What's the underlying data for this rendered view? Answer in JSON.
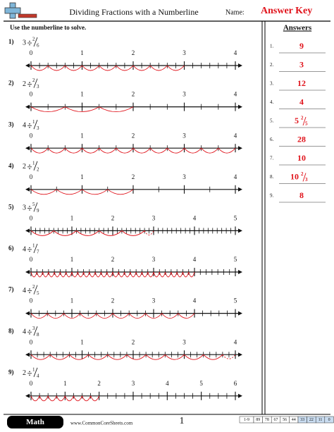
{
  "header": {
    "title": "Dividing Fractions with a Numberline",
    "name_label": "Name:",
    "answer_key": "Answer Key",
    "instructions": "Use the numberline to solve."
  },
  "problems": [
    {
      "label": "1)",
      "dividend": 3,
      "numerator": 2,
      "denominator": 6,
      "axis": [
        0,
        1,
        2,
        3,
        4
      ]
    },
    {
      "label": "2)",
      "dividend": 2,
      "numerator": 2,
      "denominator": 3,
      "axis": [
        0,
        1,
        2,
        3,
        4
      ]
    },
    {
      "label": "3)",
      "dividend": 4,
      "numerator": 1,
      "denominator": 3,
      "axis": [
        0,
        1,
        2,
        3,
        4
      ]
    },
    {
      "label": "4)",
      "dividend": 2,
      "numerator": 1,
      "denominator": 2,
      "axis": [
        0,
        1,
        2,
        3,
        4
      ]
    },
    {
      "label": "5)",
      "dividend": 3,
      "numerator": 5,
      "denominator": 9,
      "axis": [
        0,
        1,
        2,
        3,
        4,
        5
      ]
    },
    {
      "label": "6)",
      "dividend": 4,
      "numerator": 1,
      "denominator": 7,
      "axis": [
        0,
        1,
        2,
        3,
        4,
        5
      ]
    },
    {
      "label": "7)",
      "dividend": 4,
      "numerator": 2,
      "denominator": 5,
      "axis": [
        0,
        1,
        2,
        3,
        4,
        5
      ]
    },
    {
      "label": "8)",
      "dividend": 4,
      "numerator": 3,
      "denominator": 8,
      "axis": [
        0,
        1,
        2,
        3,
        4
      ]
    },
    {
      "label": "9)",
      "dividend": 2,
      "numerator": 1,
      "denominator": 4,
      "axis": [
        0,
        1,
        2,
        3,
        4,
        5,
        6
      ]
    }
  ],
  "answers": {
    "title": "Answers",
    "items": [
      {
        "label": "1.",
        "whole": 9
      },
      {
        "label": "2.",
        "whole": 3
      },
      {
        "label": "3.",
        "whole": 12
      },
      {
        "label": "4.",
        "whole": 4
      },
      {
        "label": "5.",
        "whole": 5,
        "numerator": 2,
        "denominator": 5
      },
      {
        "label": "6.",
        "whole": 28
      },
      {
        "label": "7.",
        "whole": 10
      },
      {
        "label": "8.",
        "whole": 10,
        "numerator": 2,
        "denominator": 3
      },
      {
        "label": "9.",
        "whole": 8
      }
    ]
  },
  "footer": {
    "subject": "Math",
    "website": "www.CommonCoreSheets.com",
    "page": 1,
    "score_range": "1-9",
    "scores": [
      89,
      78,
      67,
      56,
      44,
      33,
      22,
      11,
      0
    ]
  }
}
